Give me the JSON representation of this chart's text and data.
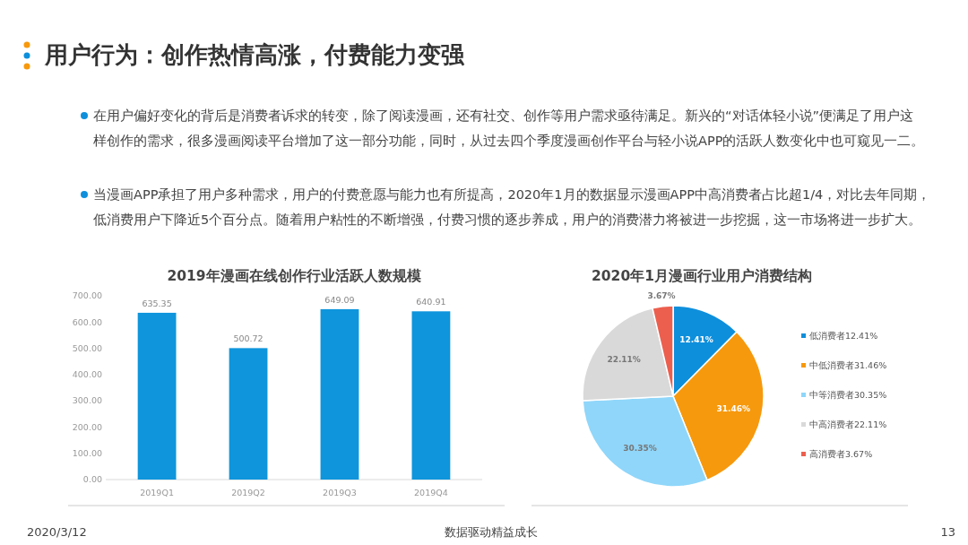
{
  "chart_data": [
    {
      "type": "bar",
      "title": "2019年漫画在线创作行业活跃人数规模",
      "categories": [
        "2019Q1",
        "2019Q2",
        "2019Q3",
        "2019Q4"
      ],
      "values": [
        635.35,
        500.72,
        649.09,
        640.91
      ],
      "color": "#0e95dc",
      "ylim": [
        0,
        700
      ],
      "yticks": [
        {
          "value": 0,
          "label": "0.00"
        },
        {
          "value": 100,
          "label": "100.00"
        },
        {
          "value": 200,
          "label": "200.00"
        },
        {
          "value": 300,
          "label": "300.00"
        },
        {
          "value": 400,
          "label": "400.00"
        },
        {
          "value": 500,
          "label": "500.00"
        },
        {
          "value": 600,
          "label": "600.00"
        },
        {
          "value": 700,
          "label": "700.00"
        }
      ],
      "data_labels": true,
      "annotations": [
        "用户行为：创作热情高涨，付费能力变强",
        "在用户偏好变化的背后是消费者诉求的转变，除了阅读漫画，还有社交、创作等用户需求亟待满足。新兴的“对话体轻小说”便满足了用户这样创作的需求，很多漫画阅读平台增加了这一部分功能，同时，从过去四个季度漫画创作平台与轻小说APP的活跃人数变化中也可窥见一二。",
        "当漫画APP承担了用户多种需求，用户的付费意愿与能力也有所提高，2020年1月的数据显示漫画APP中高消费者占比超1/4，对比去年同期，低消费用户下降近5个百分点。随着用户粘性的不断增强，付费习惯的逐步养成，用户的消费潜力将被进一步挖掘，这一市场将进一步扩大。",
        "2020/3/12",
        "数据驱动精益成长",
        "13"
      ]
    },
    {
      "type": "pie",
      "title": "2020年1月漫画行业用户消费结构",
      "categories": [
        "低消费者12.41%",
        "中低消费者31.46%",
        "中等消费者30.35%",
        "中高消费者22.11%",
        "高消费者3.67%"
      ],
      "values": [
        12.41,
        31.46,
        30.35,
        22.11,
        3.67
      ],
      "colors": [
        "#0e8fdc",
        "#f7990c",
        "#8fd6fa",
        "#d9d9d9",
        "#ec5f4e"
      ],
      "value_labels": [
        "12.41%",
        "31.46%",
        "30.35%",
        "22.11%",
        "3.67%"
      ],
      "legend": "right"
    }
  ]
}
